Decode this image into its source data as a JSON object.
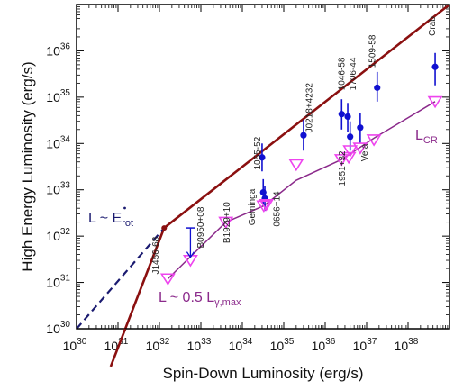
{
  "chart_data": {
    "type": "scatter",
    "title": "",
    "xlabel": "Spin-Down Luminosity (erg/s)",
    "ylabel": "High Energy Luminosity (erg/s)",
    "xscale": "log",
    "yscale": "log",
    "xlim": [
      1e+30,
      1e+39
    ],
    "ylim": [
      1e+30,
      1e+37
    ],
    "grid": false,
    "x_ticks": [
      {
        "base": "10",
        "exp": "30",
        "value": 1e+30
      },
      {
        "base": "10",
        "exp": "31",
        "value": 1e+31
      },
      {
        "base": "10",
        "exp": "32",
        "value": 1e+32
      },
      {
        "base": "10",
        "exp": "33",
        "value": 1e+33
      },
      {
        "base": "10",
        "exp": "34",
        "value": 1e+34
      },
      {
        "base": "10",
        "exp": "35",
        "value": 1e+35
      },
      {
        "base": "10",
        "exp": "36",
        "value": 1e+36
      },
      {
        "base": "10",
        "exp": "37",
        "value": 1e+37
      },
      {
        "base": "10",
        "exp": "38",
        "value": 1e+38
      }
    ],
    "y_ticks": [
      {
        "base": "10",
        "exp": "30",
        "value": 1e+30
      },
      {
        "base": "10",
        "exp": "31",
        "value": 1e+31
      },
      {
        "base": "10",
        "exp": "32",
        "value": 1e+32
      },
      {
        "base": "10",
        "exp": "33",
        "value": 1e+33
      },
      {
        "base": "10",
        "exp": "34",
        "value": 1e+34
      },
      {
        "base": "10",
        "exp": "35",
        "value": 1e+35
      },
      {
        "base": "10",
        "exp": "36",
        "value": 1e+36
      }
    ],
    "colors": {
      "observed": "#1010d0",
      "model": "#ee44ee",
      "model_curve": "#8b2a8b",
      "erot_line": "#8b1010",
      "dashed_line": "#1a1a70"
    },
    "series": [
      {
        "marker": "filled-circle",
        "points": [
          {
            "label": "Crab",
            "x": 4.5e+38,
            "y": 4.5e+35,
            "yerr": [
              1.8e+35,
              9e+35
            ]
          },
          {
            "label": "1509-58",
            "x": 1.8e+37,
            "y": 1.6e+35,
            "yerr": [
              8e+34,
              3.5e+35
            ]
          },
          {
            "label": "1706-44",
            "x": 3.5e+36,
            "y": 3.8e+34,
            "yerr": [
              1.8e+34,
              7.5e+34
            ]
          },
          {
            "label": "1046-58",
            "x": 2.5e+36,
            "y": 4.3e+34,
            "yerr": [
              2e+34,
              9e+34
            ]
          },
          {
            "label": "",
            "x": 4e+36,
            "y": 1.4e+34,
            "yerr": [
              7e+33,
              3e+34
            ]
          },
          {
            "label": "Vela",
            "x": 7e+36,
            "y": 2.2e+34,
            "yerr": [
              1e+34,
              4.5e+34
            ]
          },
          {
            "label": "J0218+4232",
            "x": 3e+35,
            "y": 1.5e+34,
            "yerr": [
              7e+33,
              3.2e+34
            ]
          },
          {
            "label": "1055-52",
            "x": 3e+34,
            "y": 5e+33,
            "yerr": [
              2.5e+33,
              1e+34
            ]
          },
          {
            "label": "",
            "x": 3.2e+34,
            "y": 8.8e+32,
            "yerr": [
              4.5e+32,
              1.7e+33
            ]
          },
          {
            "label": "Geminga",
            "x": 3.5e+34,
            "y": 6.5e+32,
            "yerr": [
              3.5e+32,
              1.2e+33
            ]
          }
        ]
      },
      {
        "marker": "open-triangle-down",
        "points": [
          {
            "label": "Crab",
            "x": 4.5e+38,
            "y": 8e+34
          },
          {
            "label": "1509-58",
            "x": 1.5e+37,
            "y": 1.2e+34
          },
          {
            "label": "Vela",
            "x": 7e+36,
            "y": 8e+33
          },
          {
            "label": "",
            "x": 4e+36,
            "y": 7e+33
          },
          {
            "label": "1951+32",
            "x": 3.7e+36,
            "y": 5e+33
          },
          {
            "label": "",
            "x": 2.5e+36,
            "y": 4.5e+33
          },
          {
            "label": "J0218+4232",
            "x": 2e+35,
            "y": 3.5e+33
          },
          {
            "label": "0656+14",
            "x": 3.8e+34,
            "y": 4.8e+32
          },
          {
            "label": "Geminga",
            "x": 3.3e+34,
            "y": 4.5e+32
          },
          {
            "label": "B1929+10",
            "x": 4e+33,
            "y": 2e+32
          },
          {
            "label": "B0950+08",
            "x": 5.6e+32,
            "y": 3e+31
          },
          {
            "label": "J1456-68",
            "x": 1.6e+32,
            "y": 1.2e+31
          }
        ]
      }
    ],
    "upper_limit": {
      "label": "B0950+08",
      "x": 5.6e+32,
      "y": 1.5e+32,
      "y_to": 3.5e+31
    },
    "lines": [
      {
        "label": "L ~ Ė_rot",
        "points": [
          [
            1.5e+31,
            1e+30
          ],
          [
            1.3e+32,
            1.5e+32
          ],
          [
            1e+39,
            1e+37
          ]
        ]
      },
      {
        "label": "",
        "points": [
          [
            1e+30,
            1e+30
          ],
          [
            1.3e+32,
            1.5e+32
          ]
        ],
        "style": "dashed"
      },
      {
        "label": "L_CR",
        "points": [
          [
            1.6e+32,
            1.2e+31
          ],
          [
            4e+33,
            2e+32
          ],
          [
            3.3e+34,
            4.5e+32
          ],
          [
            2e+35,
            1.6e+33
          ],
          [
            2.5e+36,
            4.5e+33
          ],
          [
            1.5e+37,
            1.3e+34
          ],
          [
            4.5e+38,
            8e+34
          ]
        ]
      }
    ],
    "annotations": {
      "erot_line": {
        "prefix": "L ~ E",
        "sub": "rot"
      },
      "lcr": {
        "main": "L",
        "sub": "CR"
      },
      "gamma_max": {
        "prefix": "L ~ 0.5 L",
        "sub": "γ,max"
      },
      "names": [
        {
          "text": "Crab",
          "x": 4.5e+38,
          "y": 2.1e+36,
          "vertical": true
        },
        {
          "text": "1509-58",
          "x": 1.6e+37,
          "y": 4.3e+35,
          "vertical": true
        },
        {
          "text": "1046-58",
          "x": 2.9e+36,
          "y": 1.4e+35,
          "vertical": true
        },
        {
          "text": "1706-44",
          "x": 5.5e+36,
          "y": 1.4e+35,
          "vertical": true
        },
        {
          "text": "J0218+4232",
          "x": 4.8e+35,
          "y": 1.7e+34,
          "vertical": true
        },
        {
          "text": "1055-52",
          "x": 2.7e+34,
          "y": 2.7e+33,
          "vertical": true
        },
        {
          "text": "B0950+08",
          "x": 1.15e+33,
          "y": 5.5e+31,
          "vertical": true
        },
        {
          "text": "B1929+10",
          "x": 5e+33,
          "y": 7e+31,
          "vertical": true
        },
        {
          "text": "Geminga",
          "x": 2e+34,
          "y": 1.7e+32,
          "vertical": true
        },
        {
          "text": "0656+14",
          "x": 8e+34,
          "y": 1.6e+32,
          "vertical": true
        },
        {
          "text": "1951+32",
          "x": 3e+36,
          "y": 1.2e+33,
          "vertical": true
        },
        {
          "text": "Vela",
          "x": 1.05e+37,
          "y": 4.1e+33,
          "vertical": true
        },
        {
          "text": "J1456-68",
          "x": 9.5e+31,
          "y": 1.5e+31,
          "vertical": true
        }
      ]
    }
  }
}
